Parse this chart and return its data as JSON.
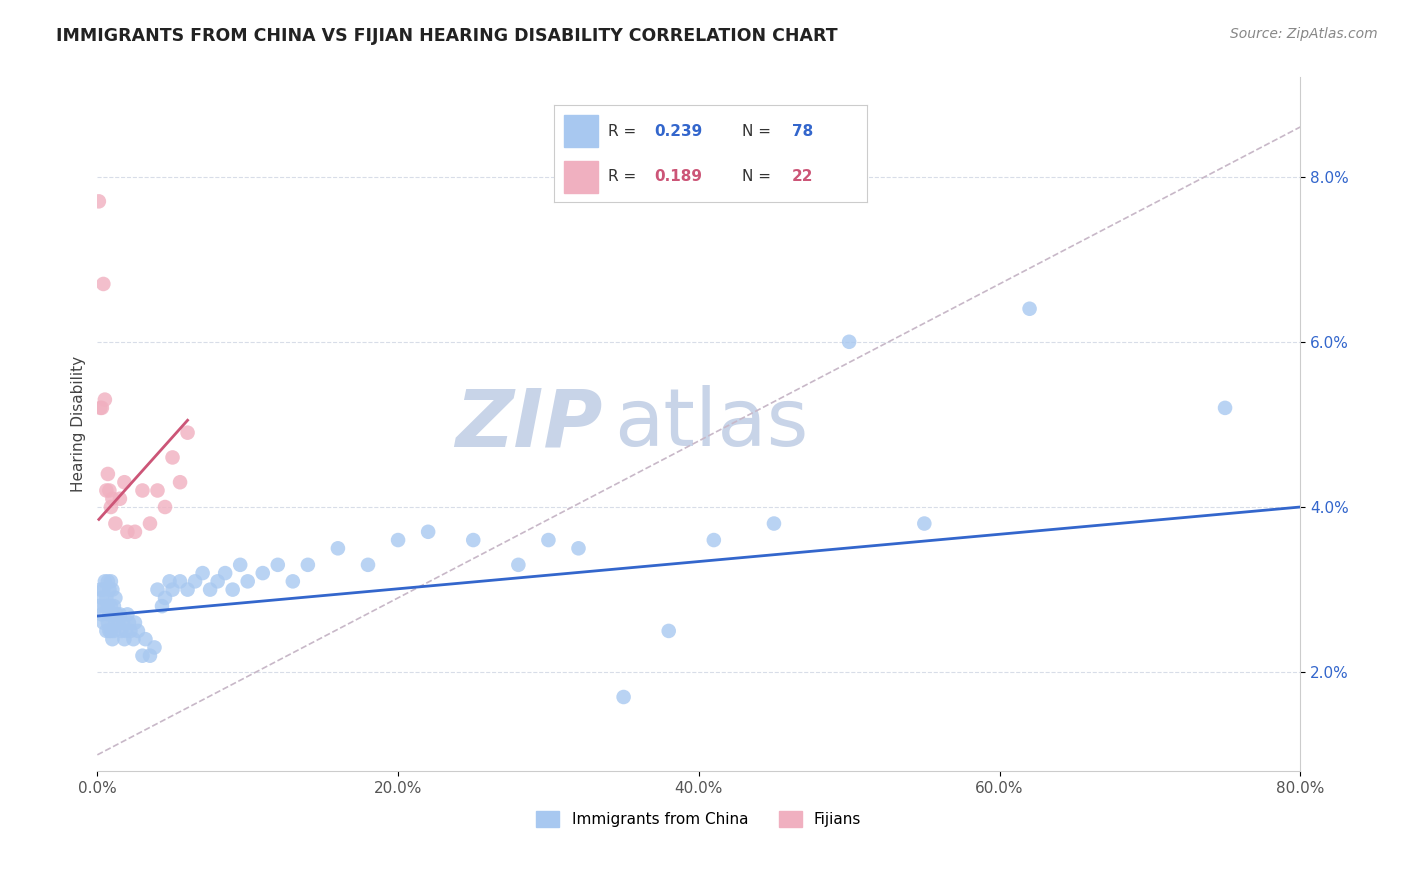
{
  "title": "IMMIGRANTS FROM CHINA VS FIJIAN HEARING DISABILITY CORRELATION CHART",
  "source_text": "Source: ZipAtlas.com",
  "ylabel": "Hearing Disability",
  "x_bottom_label_china": "Immigrants from China",
  "x_bottom_label_fijians": "Fijians",
  "xlim": [
    0.0,
    0.8
  ],
  "ylim": [
    0.008,
    0.092
  ],
  "yticks": [
    0.02,
    0.04,
    0.06,
    0.08
  ],
  "ytick_labels": [
    "2.0%",
    "4.0%",
    "6.0%",
    "8.0%"
  ],
  "xticks": [
    0.0,
    0.2,
    0.4,
    0.6,
    0.8
  ],
  "xtick_labels": [
    "0.0%",
    "20.0%",
    "40.0%",
    "60.0%",
    "80.0%"
  ],
  "legend_R_china": "0.239",
  "legend_N_china": "78",
  "legend_R_fijians": "0.189",
  "legend_N_fijians": "22",
  "china_color": "#a8c8f0",
  "fijian_color": "#f0b0c0",
  "china_line_color": "#3366cc",
  "fijian_line_color": "#cc5577",
  "dashed_line_color": "#c8b8c8",
  "watermark_zip": "ZIP",
  "watermark_atlas": "atlas",
  "watermark_color_zip": "#c8d4e8",
  "watermark_color_atlas": "#c8d4e8",
  "background_color": "#ffffff",
  "grid_color": "#d8dde8",
  "china_x": [
    0.001,
    0.002,
    0.003,
    0.003,
    0.004,
    0.004,
    0.005,
    0.005,
    0.006,
    0.006,
    0.007,
    0.007,
    0.007,
    0.008,
    0.008,
    0.008,
    0.009,
    0.009,
    0.009,
    0.01,
    0.01,
    0.01,
    0.011,
    0.011,
    0.012,
    0.012,
    0.013,
    0.014,
    0.015,
    0.016,
    0.017,
    0.018,
    0.019,
    0.02,
    0.021,
    0.022,
    0.024,
    0.025,
    0.027,
    0.03,
    0.032,
    0.035,
    0.038,
    0.04,
    0.043,
    0.045,
    0.048,
    0.05,
    0.055,
    0.06,
    0.065,
    0.07,
    0.075,
    0.08,
    0.085,
    0.09,
    0.095,
    0.1,
    0.11,
    0.12,
    0.13,
    0.14,
    0.16,
    0.18,
    0.2,
    0.22,
    0.25,
    0.28,
    0.3,
    0.32,
    0.35,
    0.38,
    0.41,
    0.45,
    0.5,
    0.55,
    0.62,
    0.75
  ],
  "china_y": [
    0.028,
    0.03,
    0.027,
    0.029,
    0.026,
    0.03,
    0.028,
    0.031,
    0.025,
    0.029,
    0.026,
    0.028,
    0.031,
    0.025,
    0.027,
    0.03,
    0.025,
    0.028,
    0.031,
    0.024,
    0.027,
    0.03,
    0.025,
    0.028,
    0.026,
    0.029,
    0.027,
    0.026,
    0.027,
    0.025,
    0.026,
    0.024,
    0.025,
    0.027,
    0.026,
    0.025,
    0.024,
    0.026,
    0.025,
    0.022,
    0.024,
    0.022,
    0.023,
    0.03,
    0.028,
    0.029,
    0.031,
    0.03,
    0.031,
    0.03,
    0.031,
    0.032,
    0.03,
    0.031,
    0.032,
    0.03,
    0.033,
    0.031,
    0.032,
    0.033,
    0.031,
    0.033,
    0.035,
    0.033,
    0.036,
    0.037,
    0.036,
    0.033,
    0.036,
    0.035,
    0.017,
    0.025,
    0.036,
    0.038,
    0.06,
    0.038,
    0.064,
    0.052
  ],
  "fijian_x": [
    0.001,
    0.002,
    0.003,
    0.004,
    0.005,
    0.006,
    0.007,
    0.008,
    0.009,
    0.01,
    0.012,
    0.015,
    0.018,
    0.02,
    0.025,
    0.03,
    0.035,
    0.04,
    0.045,
    0.05,
    0.055,
    0.06
  ],
  "fijian_y": [
    0.077,
    0.052,
    0.052,
    0.067,
    0.053,
    0.042,
    0.044,
    0.042,
    0.04,
    0.041,
    0.038,
    0.041,
    0.043,
    0.037,
    0.037,
    0.042,
    0.038,
    0.042,
    0.04,
    0.046,
    0.043,
    0.049
  ],
  "blue_line_x0": 0.0,
  "blue_line_y0": 0.0268,
  "blue_line_x1": 0.8,
  "blue_line_y1": 0.04,
  "pink_line_x0": 0.001,
  "pink_line_y0": 0.0385,
  "pink_line_x1": 0.06,
  "pink_line_y1": 0.0505,
  "dash_line_x0": 0.0,
  "dash_line_y0": 0.01,
  "dash_line_x1": 0.8,
  "dash_line_y1": 0.086
}
